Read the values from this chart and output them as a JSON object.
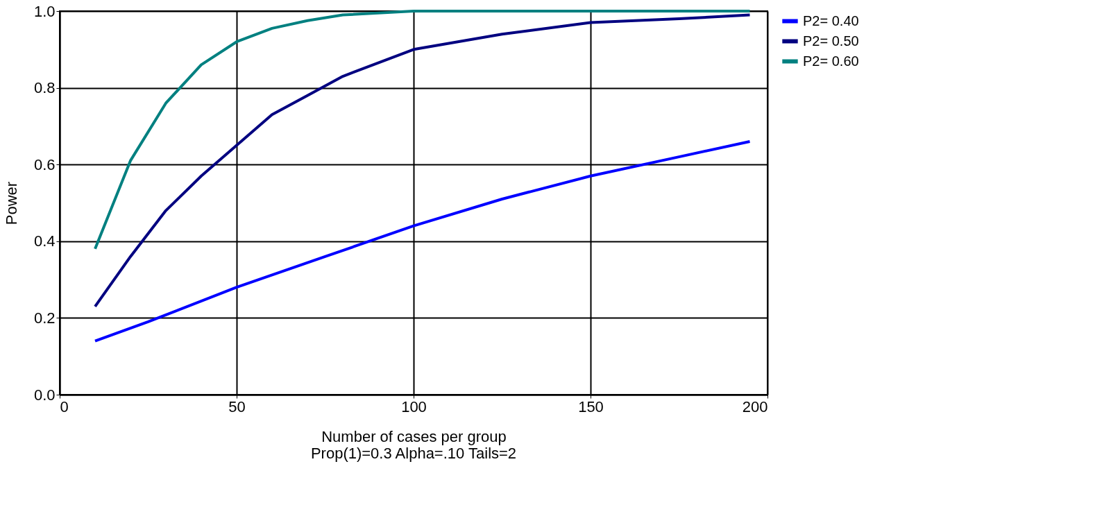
{
  "chart_data": {
    "type": "line",
    "xlabel": "Number of cases per group",
    "ylabel": "Power",
    "annotations": [
      "Prop(1)=0.3 Alpha=.10  Tails=2"
    ],
    "xlim": [
      0,
      200
    ],
    "xticks": [
      0,
      50,
      100,
      150,
      200
    ],
    "ylim": [
      0,
      1
    ],
    "yticks": [
      {
        "value": 0,
        "label": "0.0"
      },
      {
        "value": 0.2,
        "label": "0.2"
      },
      {
        "value": 0.4,
        "label": "0.4"
      },
      {
        "value": 0.6,
        "label": "0.6"
      },
      {
        "value": 0.8,
        "label": "0.8"
      },
      {
        "value": 1,
        "label": "1.0"
      }
    ],
    "grid": true,
    "legend": "right",
    "marker": "none",
    "line_style": "solid",
    "series": [
      {
        "name": "P2= 0.40",
        "color": "#0000ff",
        "x": [
          10,
          25,
          50,
          75,
          100,
          125,
          150,
          175,
          195
        ],
        "values": [
          0.14,
          0.19,
          0.28,
          0.36,
          0.44,
          0.51,
          0.57,
          0.62,
          0.66
        ]
      },
      {
        "name": "P2= 0.50",
        "color": "#000080",
        "x": [
          10,
          20,
          30,
          40,
          50,
          60,
          70,
          80,
          100,
          125,
          150,
          175,
          195
        ],
        "values": [
          0.23,
          0.36,
          0.48,
          0.57,
          0.65,
          0.73,
          0.78,
          0.83,
          0.9,
          0.94,
          0.97,
          0.98,
          0.99
        ]
      },
      {
        "name": "P2= 0.60",
        "color": "#008080",
        "x": [
          10,
          20,
          30,
          40,
          50,
          60,
          70,
          80,
          100,
          150,
          195
        ],
        "values": [
          0.38,
          0.61,
          0.76,
          0.86,
          0.92,
          0.955,
          0.975,
          0.99,
          1.0,
          1.0,
          1.0
        ]
      }
    ]
  }
}
